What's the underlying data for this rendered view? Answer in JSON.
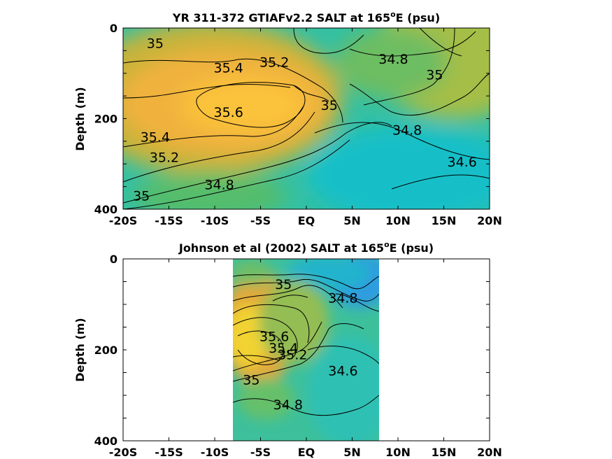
{
  "chart_data": [
    {
      "type": "contour",
      "title": "YR 311-372 GTIAFv2.2 SALT at 165",
      "title_sup": "o",
      "title_suffix": "E (psu)",
      "ylabel": "Depth (m)",
      "xticks": [
        "-20S",
        "-15S",
        "-10S",
        "-5S",
        "EQ",
        "5N",
        "10N",
        "15N",
        "20N"
      ],
      "yticks": [
        "0",
        "200",
        "400"
      ],
      "xlim": [
        -20,
        20
      ],
      "ylim": [
        0,
        400
      ],
      "y_reversed": true,
      "contour_labels": [
        {
          "value": "35",
          "lat": -16.5,
          "depth": 33
        },
        {
          "value": "35.4",
          "lat": -8.5,
          "depth": 87
        },
        {
          "value": "35.2",
          "lat": -3.5,
          "depth": 75
        },
        {
          "value": "34.8",
          "lat": 9.5,
          "depth": 68
        },
        {
          "value": "35",
          "lat": 14,
          "depth": 103
        },
        {
          "value": "35.6",
          "lat": -8.5,
          "depth": 185
        },
        {
          "value": "35",
          "lat": 2.5,
          "depth": 170
        },
        {
          "value": "34.8",
          "lat": 11,
          "depth": 225
        },
        {
          "value": "35.4",
          "lat": -16.5,
          "depth": 240
        },
        {
          "value": "35.2",
          "lat": -15.5,
          "depth": 285
        },
        {
          "value": "34.6",
          "lat": 17,
          "depth": 295
        },
        {
          "value": "34.8",
          "lat": -9.5,
          "depth": 345
        },
        {
          "value": "35",
          "lat": -18,
          "depth": 370
        }
      ]
    },
    {
      "type": "contour",
      "title": "Johnson et al (2002) SALT at 165",
      "title_sup": "o",
      "title_suffix": "E (psu)",
      "ylabel": "Depth (m)",
      "xticks": [
        "-20S",
        "-15S",
        "-10S",
        "-5S",
        "EQ",
        "5N",
        "10N",
        "15N",
        "20N"
      ],
      "yticks": [
        "0",
        "200",
        "400"
      ],
      "xlim": [
        -20,
        20
      ],
      "ylim": [
        0,
        400
      ],
      "data_lat_range": [
        -8,
        8
      ],
      "y_reversed": true,
      "contour_labels": [
        {
          "value": "35",
          "lat": -2.5,
          "depth": 55
        },
        {
          "value": "34.8",
          "lat": 4,
          "depth": 85
        },
        {
          "value": "35.6",
          "lat": -3.5,
          "depth": 170
        },
        {
          "value": "35.4",
          "lat": -2.5,
          "depth": 195
        },
        {
          "value": "35.2",
          "lat": -1.5,
          "depth": 210
        },
        {
          "value": "34.6",
          "lat": 4,
          "depth": 245
        },
        {
          "value": "35",
          "lat": -6,
          "depth": 265
        },
        {
          "value": "34.8",
          "lat": -2,
          "depth": 320
        }
      ]
    }
  ]
}
